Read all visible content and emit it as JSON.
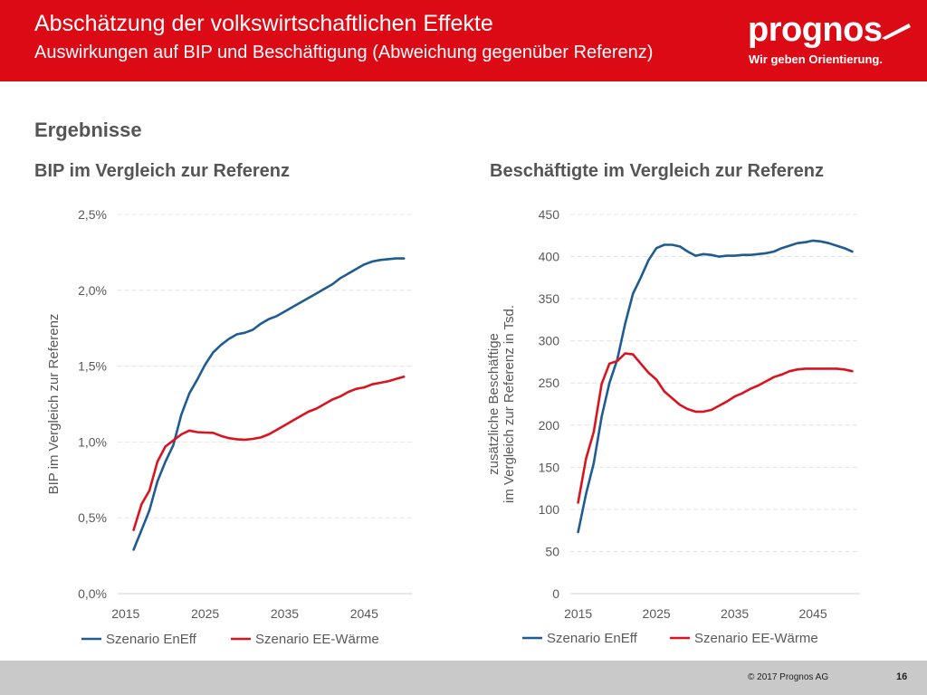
{
  "header": {
    "title": "Abschätzung der volkswirtschaftlichen Effekte",
    "subtitle": "Auswirkungen auf BIP und Beschäftigung (Abweichung gegenüber Referenz)",
    "logo_text": "prognos",
    "tagline": "Wir geben Orientierung."
  },
  "section_title": "Ergebnisse",
  "colors": {
    "brand_red": "#dc0a14",
    "series_blue": "#1f5c91",
    "series_red": "#d9141f"
  },
  "chart_data": [
    {
      "type": "line",
      "title": "BIP im Vergleich zur Referenz",
      "ylabel": "BIP im Vergleich zur Referenz",
      "xlabel": "",
      "xlim": [
        2014,
        2051
      ],
      "ylim": [
        0,
        2.5
      ],
      "yticks": [
        0,
        0.5,
        1.0,
        1.5,
        2.0,
        2.5
      ],
      "ytick_labels": [
        "0,0%",
        "0,5%",
        "1,0%",
        "1,5%",
        "2,0%",
        "2,5%"
      ],
      "xticks": [
        2015,
        2025,
        2035,
        2045
      ],
      "xtick_labels": [
        "2015",
        "2025",
        "2035",
        "2045"
      ],
      "grid": true,
      "legend_position": "bottom",
      "series": [
        {
          "name": "Szenario EnEff",
          "color": "#1f5c91",
          "x": [
            2016,
            2017,
            2018,
            2019,
            2020,
            2021,
            2022,
            2023,
            2024,
            2025,
            2026,
            2027,
            2028,
            2029,
            2030,
            2031,
            2032,
            2033,
            2034,
            2035,
            2036,
            2037,
            2038,
            2039,
            2040,
            2041,
            2042,
            2043,
            2044,
            2045,
            2046,
            2047,
            2048,
            2049,
            2050
          ],
          "y": [
            0.29,
            0.42,
            0.55,
            0.74,
            0.87,
            0.98,
            1.18,
            1.32,
            1.41,
            1.51,
            1.59,
            1.64,
            1.68,
            1.71,
            1.72,
            1.74,
            1.78,
            1.81,
            1.83,
            1.86,
            1.89,
            1.92,
            1.95,
            1.98,
            2.01,
            2.04,
            2.08,
            2.11,
            2.14,
            2.17,
            2.19,
            2.2,
            2.205,
            2.21,
            2.21
          ]
        },
        {
          "name": "Szenario EE-Wärme",
          "color": "#d9141f",
          "x": [
            2016,
            2017,
            2018,
            2019,
            2020,
            2021,
            2022,
            2023,
            2024,
            2025,
            2026,
            2027,
            2028,
            2029,
            2030,
            2031,
            2032,
            2033,
            2034,
            2035,
            2036,
            2037,
            2038,
            2039,
            2040,
            2041,
            2042,
            2043,
            2044,
            2045,
            2046,
            2047,
            2048,
            2049,
            2050
          ],
          "y": [
            0.42,
            0.59,
            0.68,
            0.87,
            0.97,
            1.01,
            1.05,
            1.075,
            1.065,
            1.062,
            1.06,
            1.04,
            1.025,
            1.018,
            1.015,
            1.02,
            1.03,
            1.05,
            1.08,
            1.11,
            1.14,
            1.17,
            1.2,
            1.22,
            1.25,
            1.28,
            1.3,
            1.33,
            1.35,
            1.36,
            1.38,
            1.39,
            1.4,
            1.415,
            1.43
          ]
        }
      ]
    },
    {
      "type": "line",
      "title": "Beschäftigte im Vergleich zur Referenz",
      "ylabel": "zusätzliche Beschäftige im Vergleich zur Referenz in Tsd.",
      "ylabel_lines": [
        "zusätzliche Beschäftige",
        "im Vergleich zur Referenz in Tsd."
      ],
      "xlabel": "",
      "xlim": [
        2014,
        2051
      ],
      "ylim": [
        0,
        450
      ],
      "yticks": [
        0,
        50,
        100,
        150,
        200,
        250,
        300,
        350,
        400,
        450
      ],
      "ytick_labels": [
        "0",
        "50",
        "100",
        "150",
        "200",
        "250",
        "300",
        "350",
        "400",
        "450"
      ],
      "xticks": [
        2015,
        2025,
        2035,
        2045
      ],
      "xtick_labels": [
        "2015",
        "2025",
        "2035",
        "2045"
      ],
      "grid": true,
      "legend_position": "bottom",
      "series": [
        {
          "name": "Szenario EnEff",
          "color": "#1f5c91",
          "x": [
            2015,
            2016,
            2017,
            2018,
            2019,
            2020,
            2021,
            2022,
            2023,
            2024,
            2025,
            2026,
            2027,
            2028,
            2029,
            2030,
            2031,
            2032,
            2033,
            2034,
            2035,
            2036,
            2037,
            2038,
            2039,
            2040,
            2041,
            2042,
            2043,
            2044,
            2045,
            2046,
            2047,
            2048,
            2049,
            2050
          ],
          "y": [
            73,
            118,
            155,
            210,
            250,
            278,
            320,
            356,
            375,
            396,
            410,
            414,
            414,
            412,
            406,
            401,
            403,
            402,
            400,
            401,
            401,
            402,
            402,
            403,
            404,
            406,
            410,
            413,
            416,
            417,
            419,
            418,
            416,
            413,
            410,
            406
          ]
        },
        {
          "name": "Szenario EE-Wärme",
          "color": "#d9141f",
          "x": [
            2015,
            2016,
            2017,
            2018,
            2019,
            2020,
            2021,
            2022,
            2023,
            2024,
            2025,
            2026,
            2027,
            2028,
            2029,
            2030,
            2031,
            2032,
            2033,
            2034,
            2035,
            2036,
            2037,
            2038,
            2039,
            2040,
            2041,
            2042,
            2043,
            2044,
            2045,
            2046,
            2047,
            2048,
            2049,
            2050
          ],
          "y": [
            108,
            160,
            192,
            249,
            273,
            276,
            285,
            284,
            273,
            262,
            254,
            240,
            232,
            224,
            219,
            216,
            216,
            218,
            223,
            228,
            234,
            238,
            243,
            247,
            252,
            257,
            260,
            264,
            266,
            267,
            267,
            267,
            267,
            267,
            266,
            264
          ]
        }
      ]
    }
  ],
  "footer": {
    "copyright": "© 2017 Prognos AG",
    "page_number": "16"
  }
}
